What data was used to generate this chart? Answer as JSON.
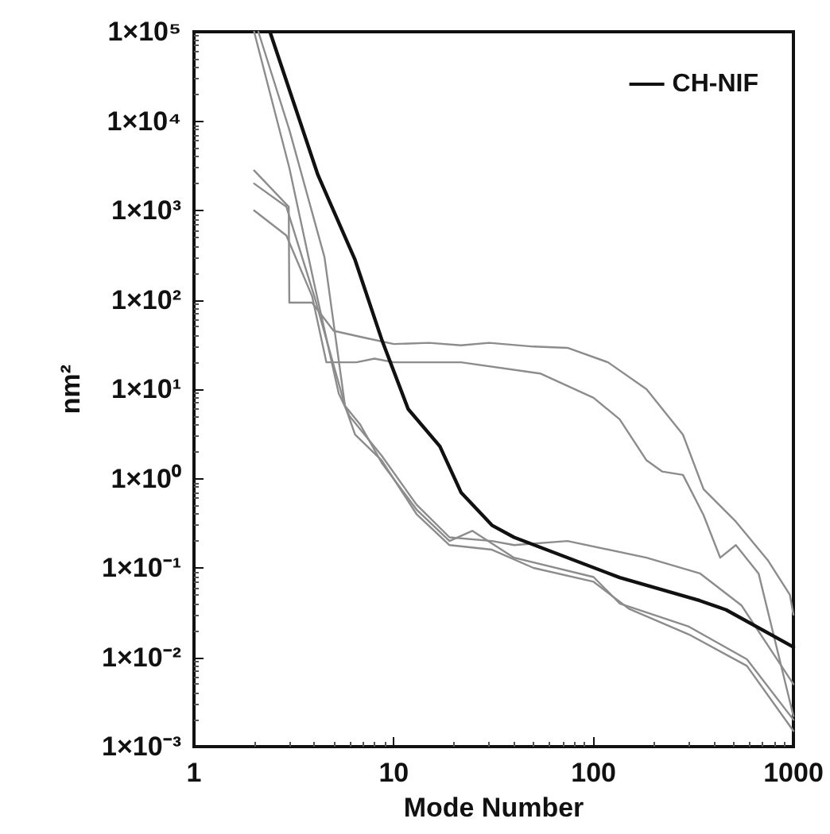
{
  "chart_data": {
    "type": "line",
    "xlabel": "Mode Number",
    "ylabel": "nm²",
    "log": "xy",
    "xlim": [
      1,
      1000
    ],
    "ylim": [
      0.001,
      100000
    ],
    "xticks": [
      1,
      10,
      100,
      1000
    ],
    "yticks": [
      {
        "value": 0.001,
        "label": "1×10⁻³"
      },
      {
        "value": 0.01,
        "label": "1×10⁻²"
      },
      {
        "value": 0.1,
        "label": "1×10⁻¹"
      },
      {
        "value": 1,
        "label": "1×10⁰"
      },
      {
        "value": 10,
        "label": "1×10¹"
      },
      {
        "value": 100,
        "label": "1×10²"
      },
      {
        "value": 1000,
        "label": "1×10³"
      },
      {
        "value": 10000,
        "label": "1×10⁴"
      },
      {
        "value": 100000,
        "label": "1×10⁵"
      }
    ],
    "grid": false,
    "legend": "top right",
    "marker": "none",
    "line_style": "solid",
    "series": [
      {
        "color": "#8c8c8c",
        "x": [
          2,
          2.98,
          3.0,
          3.9,
          5,
          7,
          10,
          15,
          21.7,
          30,
          50,
          74,
          118,
          184,
          280,
          355,
          515,
          748,
          960,
          1000
        ],
        "values": [
          2800,
          1100,
          93,
          93,
          45,
          38,
          32,
          33,
          31,
          33,
          30,
          29,
          20,
          10,
          3.1,
          0.76,
          0.33,
          0.12,
          0.05,
          0.03
        ]
      },
      {
        "color": "#8c8c8c",
        "x": [
          2,
          2.9,
          3.9,
          4.6,
          6.5,
          8,
          10,
          21.7,
          54,
          100,
          135,
          184,
          220,
          280,
          355,
          430,
          515,
          670,
          1000
        ],
        "values": [
          1000,
          525,
          110,
          20,
          20,
          22,
          20,
          20,
          15,
          8,
          4.6,
          1.6,
          1.2,
          1.1,
          0.39,
          0.13,
          0.18,
          0.086,
          0.0022
        ]
      },
      {
        "color": "#8c8c8c",
        "x": [
          2,
          3,
          4,
          5.3,
          6,
          8.7,
          13,
          19,
          31,
          40,
          74,
          184,
          340,
          550,
          1000
        ],
        "values": [
          100000,
          3000,
          150,
          9,
          5,
          1.8,
          0.51,
          0.22,
          0.2,
          0.18,
          0.2,
          0.13,
          0.087,
          0.038,
          0.005
        ]
      },
      {
        "color": "#8c8c8c",
        "x": [
          2.1,
          3,
          4.5,
          5.7,
          6.8,
          8.7,
          13,
          19,
          24.7,
          40,
          100,
          135,
          300,
          585,
          1000
        ],
        "values": [
          100000,
          8000,
          300,
          6.5,
          4,
          1.5,
          0.45,
          0.2,
          0.26,
          0.13,
          0.079,
          0.04,
          0.022,
          0.0095,
          0.002
        ]
      },
      {
        "color": "#8c8c8c",
        "x": [
          2,
          2.9,
          4,
          5.7,
          6.4,
          8.7,
          13,
          19,
          31,
          50,
          100,
          150,
          300,
          585,
          1000
        ],
        "values": [
          2000,
          1100,
          110,
          6.5,
          3.1,
          1.6,
          0.4,
          0.18,
          0.16,
          0.1,
          0.07,
          0.035,
          0.018,
          0.008,
          0.0015
        ]
      },
      {
        "name": "CH-NIF",
        "color": "#111111",
        "x": [
          2.4,
          4.17,
          6.4,
          8.7,
          11.8,
          17,
          21.7,
          31,
          40,
          135,
          340,
          460,
          1000
        ],
        "values": [
          100000,
          2500,
          280,
          36,
          6,
          2.3,
          0.7,
          0.3,
          0.22,
          0.078,
          0.043,
          0.034,
          0.013
        ]
      }
    ]
  }
}
